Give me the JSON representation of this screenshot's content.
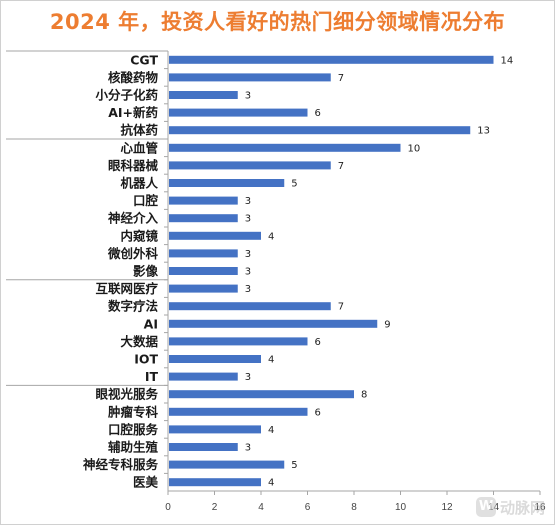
{
  "chart_data": {
    "type": "bar",
    "orientation": "horizontal",
    "title": "2024 年，投资人看好的热门细分领域情况分布",
    "categories": [
      "CGT",
      "核酸药物",
      "小分子化药",
      "AI+新药",
      "抗体药",
      "心血管",
      "眼科器械",
      "机器人",
      "口腔",
      "神经介入",
      "内窥镜",
      "微创外科",
      "影像",
      "互联网医疗",
      "数字疗法",
      "AI",
      "大数据",
      "IOT",
      "IT",
      "眼视光服务",
      "肿瘤专科",
      "口腔服务",
      "辅助生殖",
      "神经专科服务",
      "医美"
    ],
    "values": [
      14,
      7,
      3,
      6,
      13,
      10,
      7,
      5,
      3,
      3,
      4,
      3,
      3,
      3,
      7,
      9,
      6,
      4,
      3,
      8,
      6,
      4,
      3,
      5,
      4
    ],
    "xlim": [
      0,
      16
    ],
    "xticks": [
      0,
      2,
      4,
      6,
      8,
      10,
      12,
      14,
      16
    ],
    "grid": false,
    "bar_color": "#4472c4",
    "group_separators_after": [
      4,
      12,
      18
    ]
  },
  "watermark": {
    "text": "动脉网",
    "logo_glyph": "W"
  },
  "colors": {
    "title": "#ed7d31",
    "bar": "#4472c4",
    "axis": "#a6a6a6"
  }
}
